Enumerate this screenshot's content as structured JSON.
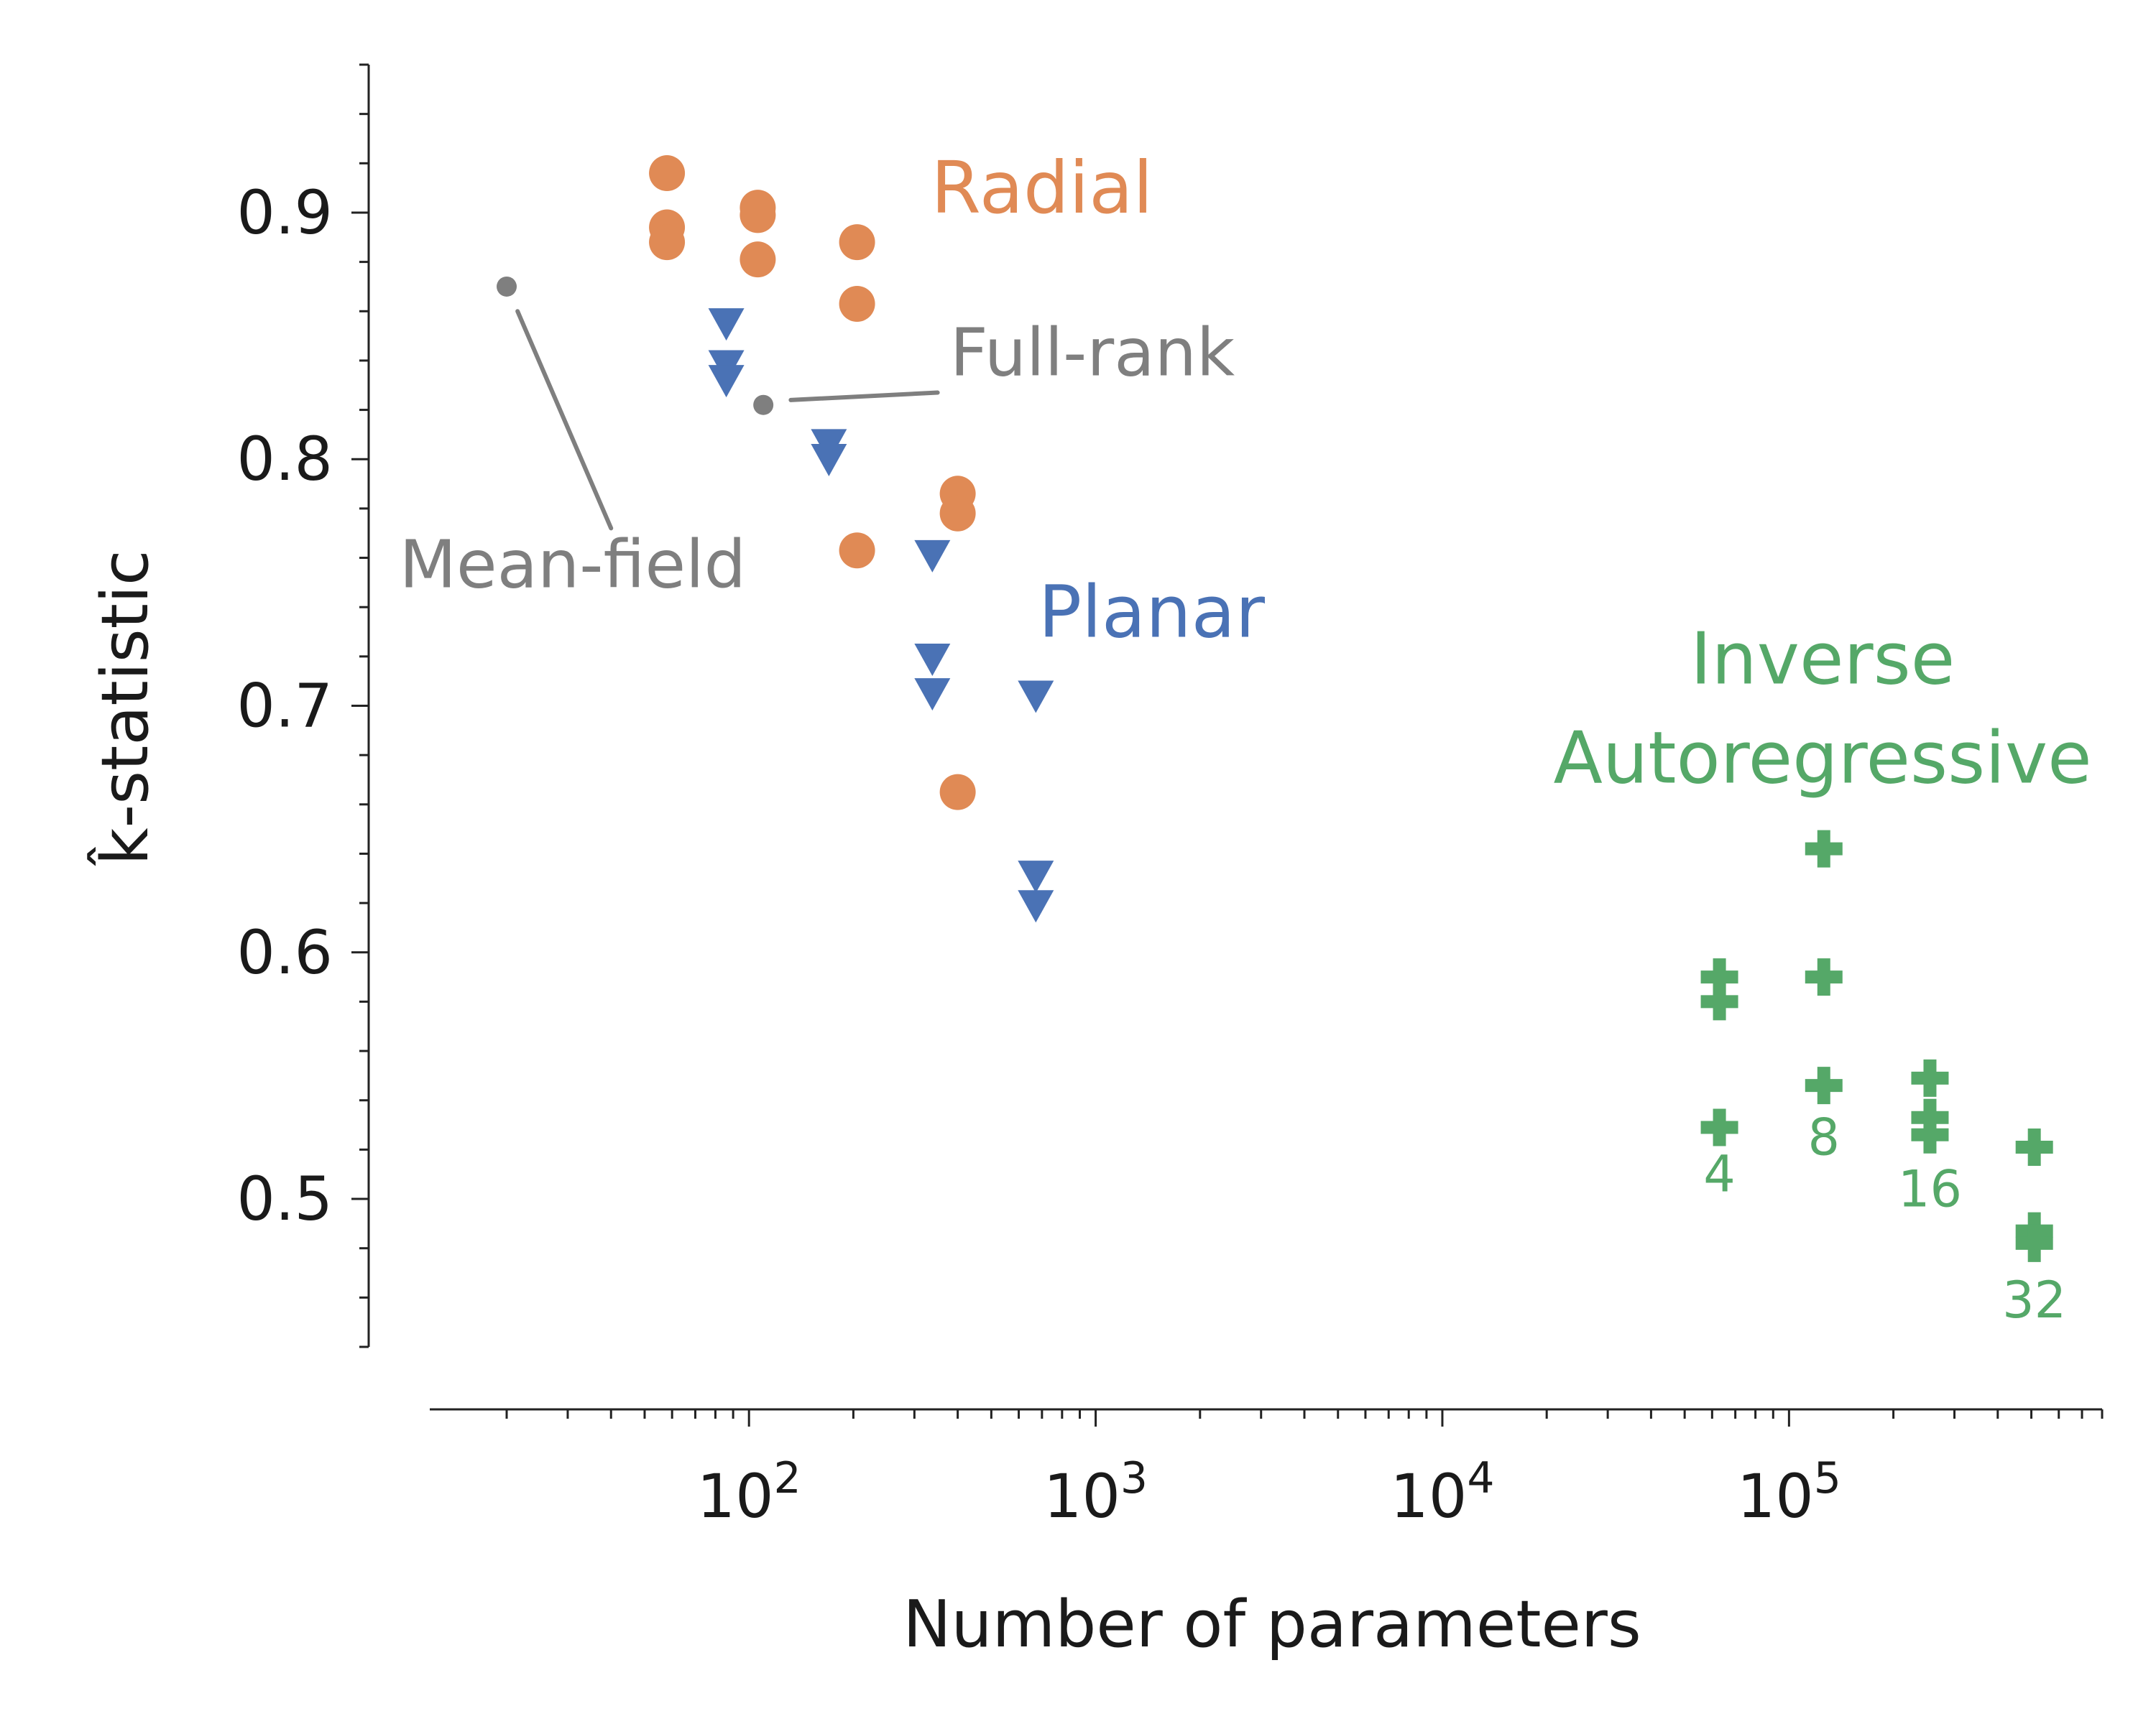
{
  "chart_data": {
    "type": "scatter",
    "xlabel": "Number of parameters",
    "ylabel": "k̂-statistic",
    "x_scale": "log",
    "xlim": [
      12,
      800000
    ],
    "ylim": [
      0.44,
      0.96
    ],
    "x_ticks": [
      {
        "value": 100,
        "base": "10",
        "exp": "2"
      },
      {
        "value": 1000,
        "base": "10",
        "exp": "3"
      },
      {
        "value": 10000,
        "base": "10",
        "exp": "4"
      },
      {
        "value": 100000,
        "base": "10",
        "exp": "5"
      }
    ],
    "y_ticks": [
      {
        "value": 0.5,
        "label": "0.5"
      },
      {
        "value": 0.6,
        "label": "0.6"
      },
      {
        "value": 0.7,
        "label": "0.7"
      },
      {
        "value": 0.8,
        "label": "0.8"
      },
      {
        "value": 0.9,
        "label": "0.9"
      }
    ],
    "grid": false,
    "series": [
      {
        "name": "Radial",
        "color": "#e08a55",
        "marker": "circle",
        "points": [
          {
            "x": 58,
            "y": 0.916
          },
          {
            "x": 58,
            "y": 0.894
          },
          {
            "x": 58,
            "y": 0.888
          },
          {
            "x": 106,
            "y": 0.902
          },
          {
            "x": 106,
            "y": 0.899
          },
          {
            "x": 106,
            "y": 0.881
          },
          {
            "x": 205,
            "y": 0.888
          },
          {
            "x": 205,
            "y": 0.863
          },
          {
            "x": 205,
            "y": 0.763
          },
          {
            "x": 400,
            "y": 0.786
          },
          {
            "x": 400,
            "y": 0.778
          },
          {
            "x": 400,
            "y": 0.665
          }
        ]
      },
      {
        "name": "Planar",
        "color": "#4a72b5",
        "marker": "triangle-down",
        "points": [
          {
            "x": 86,
            "y": 0.855
          },
          {
            "x": 86,
            "y": 0.838
          },
          {
            "x": 86,
            "y": 0.832
          },
          {
            "x": 170,
            "y": 0.806
          },
          {
            "x": 170,
            "y": 0.8
          },
          {
            "x": 338,
            "y": 0.761
          },
          {
            "x": 338,
            "y": 0.719
          },
          {
            "x": 338,
            "y": 0.705
          },
          {
            "x": 672,
            "y": 0.704
          },
          {
            "x": 672,
            "y": 0.631
          },
          {
            "x": 672,
            "y": 0.619
          }
        ]
      },
      {
        "name": "Inverse Autoregressive",
        "color": "#55a868",
        "marker": "plus",
        "points": [
          {
            "x": 63000,
            "y": 0.59
          },
          {
            "x": 63000,
            "y": 0.58
          },
          {
            "x": 63000,
            "y": 0.529
          },
          {
            "x": 126000,
            "y": 0.642
          },
          {
            "x": 126000,
            "y": 0.59
          },
          {
            "x": 126000,
            "y": 0.546
          },
          {
            "x": 255000,
            "y": 0.549
          },
          {
            "x": 255000,
            "y": 0.533
          },
          {
            "x": 255000,
            "y": 0.526
          },
          {
            "x": 510000,
            "y": 0.521
          },
          {
            "x": 510000,
            "y": 0.487
          },
          {
            "x": 510000,
            "y": 0.482
          }
        ]
      },
      {
        "name": "Mean-field",
        "color": "#7f7f7f",
        "marker": "small-circle",
        "points": [
          {
            "x": 20,
            "y": 0.87
          }
        ]
      },
      {
        "name": "Full-rank",
        "color": "#7f7f7f",
        "marker": "small-circle",
        "points": [
          {
            "x": 110,
            "y": 0.822
          }
        ]
      }
    ],
    "series_labels": [
      {
        "lines": [
          "Radial"
        ],
        "color": "#e08a55",
        "x": 700,
        "y": 0.9,
        "anchor": "middle"
      },
      {
        "lines": [
          "Planar"
        ],
        "color": "#4a72b5",
        "x": 1450,
        "y": 0.728,
        "anchor": "middle"
      },
      {
        "lines": [
          "Inverse",
          "Autoregressive"
        ],
        "color": "#55a868",
        "x": 125000,
        "y": 0.709,
        "anchor": "middle"
      },
      {
        "lines": [
          "Full-rank"
        ],
        "color": "#7f7f7f",
        "x": 380,
        "y": 0.834,
        "anchor": "start"
      },
      {
        "lines": [
          "Mean-field"
        ],
        "color": "#7f7f7f",
        "x": 31,
        "y": 0.748,
        "anchor": "middle"
      }
    ],
    "annotations": [
      {
        "text": "4",
        "x": 63000,
        "y": 0.503,
        "color": "#55a868"
      },
      {
        "text": "8",
        "x": 126000,
        "y": 0.518,
        "color": "#55a868"
      },
      {
        "text": "16",
        "x": 255000,
        "y": 0.497,
        "color": "#55a868"
      },
      {
        "text": "32",
        "x": 510000,
        "y": 0.452,
        "color": "#55a868"
      }
    ],
    "leader_lines": [
      {
        "from": {
          "x": 21.5,
          "y": 0.86
        },
        "to": {
          "x": 40,
          "y": 0.772
        },
        "color": "#7f7f7f"
      },
      {
        "from": {
          "x": 132,
          "y": 0.824
        },
        "to": {
          "x": 350,
          "y": 0.827
        },
        "color": "#7f7f7f"
      }
    ]
  }
}
